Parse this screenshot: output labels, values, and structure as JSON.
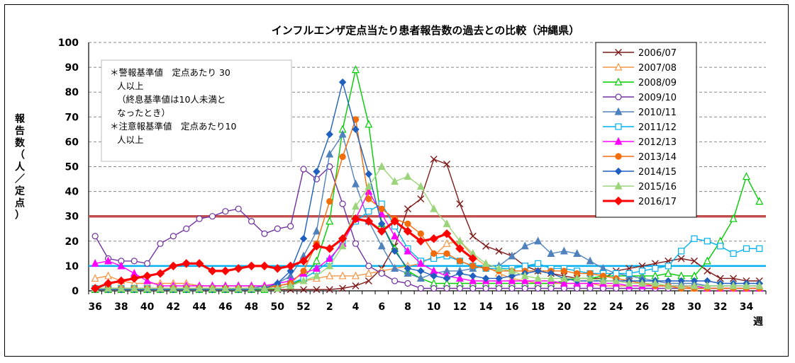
{
  "chart_data": {
    "type": "line",
    "title": "インフルエンザ定点当たり患者報告数の過去との比較（沖縄県）",
    "ylabel": "報告数（人／定点）",
    "xlabel": "週",
    "ylim": [
      0,
      100
    ],
    "yticks": [
      0,
      10,
      20,
      30,
      40,
      50,
      60,
      70,
      80,
      90,
      100
    ],
    "x_weeks": [
      36,
      37,
      38,
      39,
      40,
      41,
      42,
      43,
      44,
      45,
      46,
      47,
      48,
      49,
      50,
      51,
      52,
      1,
      2,
      3,
      4,
      5,
      6,
      7,
      8,
      9,
      10,
      11,
      12,
      13,
      14,
      15,
      16,
      17,
      18,
      19,
      20,
      21,
      22,
      23,
      24,
      25,
      26,
      27,
      28,
      29,
      30,
      31,
      32,
      33,
      34,
      35
    ],
    "x_tick_labels": [
      "36",
      "38",
      "40",
      "42",
      "44",
      "46",
      "48",
      "50",
      "52",
      "2",
      "4",
      "6",
      "8",
      "10",
      "12",
      "14",
      "16",
      "18",
      "20",
      "22",
      "24",
      "26",
      "28",
      "30",
      "32",
      "34"
    ],
    "grid": true,
    "legend_position": "top-right",
    "reference_lines": [
      {
        "name": "警報基準値",
        "value": 30,
        "color": "#c0504d"
      },
      {
        "name": "注意報基準値",
        "value": 10,
        "color": "#00b0f0"
      }
    ],
    "annotation_lines": [
      "＊警報基準値　定点あたり 30",
      "人以上",
      "（終息基準値は10人未満と",
      "なったとき）",
      "＊注意報基準値　定点あたり10",
      "人以上"
    ],
    "series": [
      {
        "name": "2006/07",
        "color": "#7f1a1a",
        "marker": "x",
        "values": [
          0.5,
          0.5,
          0.5,
          0.5,
          0.5,
          0.5,
          0.5,
          0.5,
          0.5,
          0.5,
          0.5,
          0.5,
          0.5,
          0.5,
          0.5,
          0.5,
          0.5,
          0.5,
          0.5,
          1,
          2,
          4,
          9,
          18,
          33,
          37,
          53,
          51,
          35,
          22,
          18,
          16,
          14,
          10,
          8,
          7,
          6,
          5,
          5,
          5,
          8,
          9,
          10,
          11,
          12,
          13,
          12,
          8,
          5,
          5,
          4,
          4
        ]
      },
      {
        "name": "2007/08",
        "color": "#f79646",
        "marker": "triangle-open",
        "values": [
          5,
          6,
          4,
          3,
          3,
          3,
          3,
          3,
          2,
          2,
          2,
          2,
          2,
          2,
          2,
          3,
          4,
          5,
          6,
          6,
          6,
          7,
          8,
          9,
          10,
          11,
          14,
          19,
          20,
          14,
          10,
          7,
          5,
          4,
          3,
          3,
          3,
          3,
          3,
          2,
          2,
          2,
          2,
          2,
          2,
          2,
          1,
          1,
          1,
          1,
          1,
          1
        ]
      },
      {
        "name": "2008/09",
        "color": "#00cc00",
        "marker": "triangle-open",
        "values": [
          0.5,
          0.5,
          0.5,
          0.5,
          0.5,
          0.5,
          0.5,
          0.5,
          0.5,
          0.5,
          0.5,
          0.5,
          0.5,
          0.5,
          1,
          2,
          5,
          12,
          28,
          65,
          89,
          67,
          27,
          17,
          8,
          5,
          3,
          3,
          3,
          3,
          3,
          3,
          3,
          3,
          3,
          3,
          4,
          5,
          5,
          6,
          6,
          6,
          6,
          6,
          7,
          6,
          6,
          12,
          20,
          29,
          46,
          36
        ]
      },
      {
        "name": "2009/10",
        "color": "#7030a0",
        "marker": "circle-open",
        "values": [
          22,
          13,
          12,
          12,
          11,
          19,
          22,
          25,
          29,
          30,
          32,
          33,
          28,
          23,
          25,
          26,
          49,
          45,
          50,
          35,
          19,
          10,
          7,
          4,
          3,
          1,
          1,
          1,
          1,
          1,
          1,
          1,
          1,
          1,
          1,
          1,
          1,
          1,
          1,
          1,
          1,
          1,
          1,
          1,
          1,
          1,
          1,
          1,
          1,
          1,
          1,
          1
        ]
      },
      {
        "name": "2010/11",
        "color": "#4f81bd",
        "marker": "triangle-filled",
        "values": [
          1,
          1,
          1,
          1,
          1,
          1,
          1,
          1,
          1,
          1,
          1,
          1,
          1,
          2,
          3,
          6,
          14,
          24,
          55,
          63,
          43,
          28,
          18,
          9,
          7,
          5,
          7,
          8,
          8,
          9,
          10,
          10,
          14,
          18,
          20,
          15,
          16,
          15,
          12,
          9,
          7,
          6,
          5,
          4,
          3,
          3,
          3,
          2,
          2,
          2,
          2,
          2
        ]
      },
      {
        "name": "2011/12",
        "color": "#00b0f0",
        "marker": "square-open",
        "values": [
          1,
          1,
          1,
          1,
          1,
          1,
          1,
          1,
          1,
          1,
          1,
          1,
          1,
          1,
          2,
          3,
          5,
          8,
          12,
          20,
          28,
          32,
          35,
          26,
          17,
          12,
          13,
          14,
          12,
          10,
          9,
          9,
          9,
          10,
          11,
          9,
          9,
          8,
          7,
          7,
          7,
          7,
          8,
          9,
          10,
          16,
          21,
          20,
          18,
          15,
          17,
          17
        ]
      },
      {
        "name": "2012/13",
        "color": "#ff00ff",
        "marker": "triangle-filled",
        "values": [
          11,
          12,
          10,
          7,
          4,
          2,
          2,
          2,
          2,
          2,
          2,
          2,
          2,
          2,
          3,
          4,
          7,
          9,
          13,
          19,
          29,
          40,
          31,
          22,
          16,
          11,
          8,
          6,
          5,
          4,
          4,
          4,
          4,
          4,
          4,
          4,
          3,
          3,
          3,
          3,
          3,
          2,
          2,
          2,
          2,
          2,
          2,
          1,
          1,
          1,
          1,
          1
        ]
      },
      {
        "name": "2013/14",
        "color": "#f36c0a",
        "marker": "circle-filled",
        "values": [
          1,
          1,
          1,
          1,
          1,
          1,
          1,
          1,
          1,
          1,
          1,
          1,
          1,
          1,
          2,
          3,
          8,
          19,
          36,
          54,
          69,
          37,
          33,
          29,
          27,
          23,
          15,
          15,
          12,
          10,
          9,
          8,
          8,
          8,
          8,
          8,
          8,
          7,
          7,
          6,
          5,
          4,
          3,
          2,
          2,
          1,
          1,
          1,
          1,
          1,
          1,
          1
        ]
      },
      {
        "name": "2014/15",
        "color": "#1f5fbf",
        "marker": "diamond-filled",
        "values": [
          0.5,
          0.5,
          0.5,
          0.5,
          0.5,
          0.5,
          0.5,
          0.5,
          0.5,
          0.5,
          0.5,
          0.5,
          0.5,
          1,
          3,
          8,
          21,
          48,
          63,
          84,
          65,
          47,
          27,
          16,
          9,
          8,
          6,
          5,
          7,
          6,
          5,
          5,
          6,
          7,
          8,
          7,
          5,
          4,
          4,
          4,
          4,
          4,
          4,
          4,
          4,
          4,
          4,
          4,
          3,
          3,
          3,
          3
        ]
      },
      {
        "name": "2015/16",
        "color": "#9bd47a",
        "marker": "triangle-filled",
        "values": [
          1,
          1,
          1,
          1,
          1,
          1,
          1,
          1,
          1,
          1,
          1,
          1,
          1,
          1,
          1,
          2,
          4,
          6,
          10,
          18,
          34,
          42,
          50,
          44,
          46,
          42,
          33,
          27,
          20,
          15,
          11,
          9,
          8,
          6,
          5,
          5,
          5,
          5,
          5,
          4,
          4,
          3,
          3,
          3,
          2,
          2,
          2,
          2,
          2,
          2,
          2,
          2
        ]
      },
      {
        "name": "2016/17",
        "color": "#ff0000",
        "marker": "diamond-filled",
        "bold": true,
        "values": [
          1,
          3,
          4,
          5,
          6,
          7,
          10,
          11,
          11,
          8,
          8,
          9,
          10,
          10,
          9,
          10,
          12,
          18,
          17,
          21,
          29,
          28,
          24,
          28,
          24,
          20,
          21,
          23,
          17,
          13,
          null,
          null,
          null,
          null,
          null,
          null,
          null,
          null,
          null,
          null,
          null,
          null,
          null,
          null,
          null,
          null,
          null,
          null,
          null,
          null,
          null,
          null
        ]
      }
    ]
  }
}
